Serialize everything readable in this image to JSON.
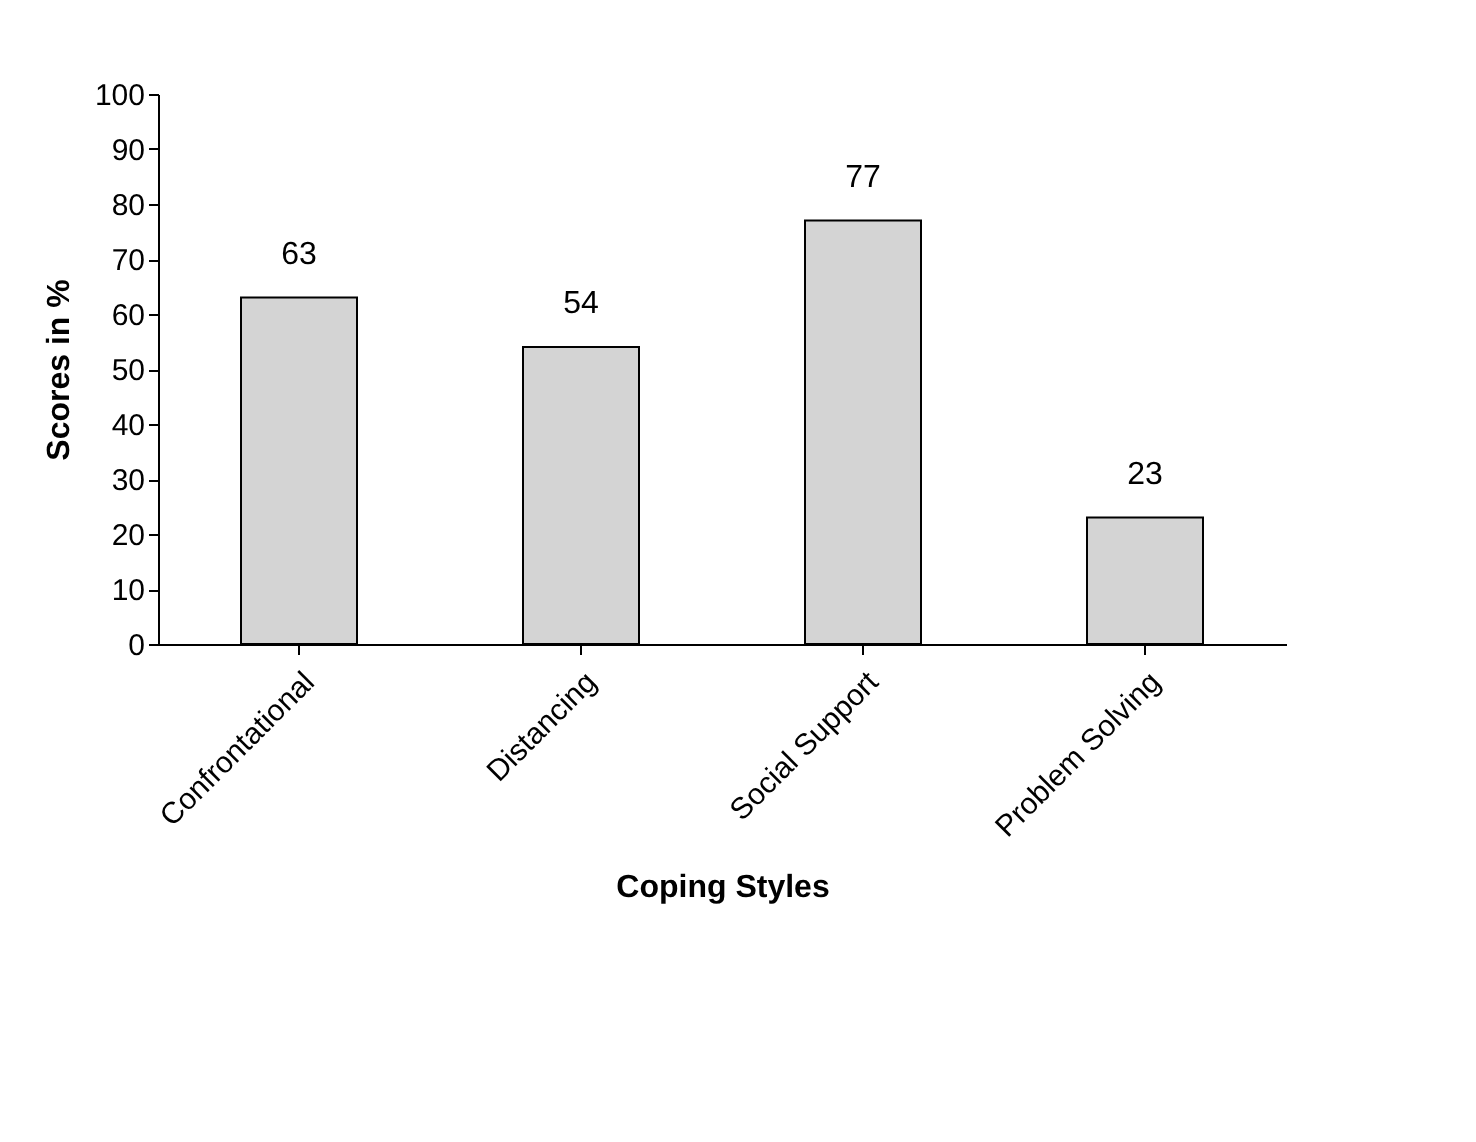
{
  "chart_data": {
    "type": "bar",
    "xlabel": "Coping Styles",
    "ylabel": "Scores in %",
    "categories": [
      "Confrontational",
      "Distancing",
      "Social Support",
      "Problem Solving"
    ],
    "values": [
      63,
      54,
      77,
      23
    ],
    "color": "#d4d4d4",
    "ylim": [
      0,
      100
    ],
    "yticks": [
      0,
      10,
      20,
      30,
      40,
      50,
      60,
      70,
      80,
      90,
      100
    ],
    "grid": false,
    "data_labels": true
  }
}
